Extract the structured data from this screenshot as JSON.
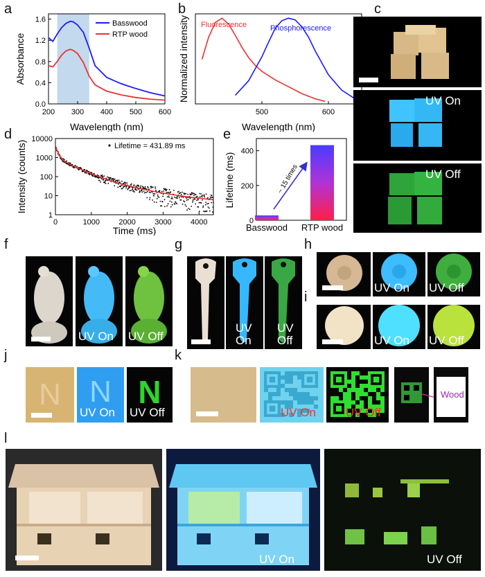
{
  "panel_labels": {
    "a": "a",
    "b": "b",
    "c": "c",
    "d": "d",
    "e": "e",
    "f": "f",
    "g": "g",
    "h": "h",
    "i": "i",
    "j": "j",
    "k": "k",
    "l": "l"
  },
  "captions": {
    "uv_on": "UV On",
    "uv_off": "UV Off",
    "uv": "UV",
    "on": "On",
    "off": "Off",
    "wood": "Wood"
  },
  "colors": {
    "blue": "#1a1aff",
    "red": "#e8332f",
    "uv_blue": "#2fb4ff",
    "green": "#34c23a"
  },
  "chart_data": [
    {
      "id": "a",
      "type": "line",
      "xlabel": "Wavelength (nm)",
      "ylabel": "Absorbance",
      "xlim": [
        200,
        600
      ],
      "ylim": [
        0,
        1.7
      ],
      "xticks": [
        200,
        300,
        400,
        500,
        600
      ],
      "yticks": [
        0.0,
        0.4,
        0.8,
        1.2,
        1.6
      ],
      "ytick_labels": [
        "0.0",
        "0.4",
        "0.8",
        "1.2",
        "1.6"
      ],
      "highlight": [
        230,
        340
      ],
      "series": [
        {
          "name": "Basswood",
          "color": "#1a1aff",
          "x": [
            200,
            215,
            230,
            245,
            260,
            275,
            285,
            300,
            320,
            340,
            360,
            400,
            450,
            500,
            550,
            600
          ],
          "y": [
            1.25,
            1.18,
            1.32,
            1.44,
            1.52,
            1.56,
            1.55,
            1.49,
            1.35,
            1.05,
            0.72,
            0.5,
            0.38,
            0.29,
            0.21,
            0.15
          ]
        },
        {
          "name": "RTP wood",
          "color": "#e8332f",
          "x": [
            200,
            215,
            230,
            245,
            260,
            275,
            285,
            300,
            320,
            340,
            360,
            400,
            450,
            500,
            550,
            600
          ],
          "y": [
            0.72,
            0.7,
            0.8,
            0.92,
            1.0,
            1.03,
            1.01,
            0.95,
            0.78,
            0.52,
            0.36,
            0.24,
            0.17,
            0.12,
            0.09,
            0.07
          ]
        }
      ]
    },
    {
      "id": "b",
      "type": "line",
      "xlabel": "Wavelength (nm)",
      "ylabel": "Normalized intensity",
      "xlim": [
        400,
        650
      ],
      "ylim": [
        0,
        1.05
      ],
      "xticks": [
        500,
        600
      ],
      "series": [
        {
          "name": "Fluorescence",
          "color": "#e8332f",
          "x": [
            410,
            420,
            430,
            440,
            450,
            460,
            470,
            480,
            490,
            500,
            520,
            540,
            560,
            580,
            595
          ],
          "y": [
            0.52,
            0.78,
            0.95,
            1.0,
            0.93,
            0.8,
            0.66,
            0.54,
            0.45,
            0.38,
            0.28,
            0.2,
            0.12,
            0.06,
            0.03
          ]
        },
        {
          "name": "Phosphorescence",
          "color": "#1a1aff",
          "x": [
            460,
            480,
            500,
            510,
            520,
            530,
            540,
            550,
            560,
            570,
            580,
            600,
            620,
            640,
            650
          ],
          "y": [
            0.1,
            0.27,
            0.55,
            0.72,
            0.88,
            0.97,
            1.0,
            0.98,
            0.9,
            0.78,
            0.62,
            0.34,
            0.16,
            0.06,
            0.03
          ]
        }
      ]
    },
    {
      "id": "d",
      "type": "scatter",
      "xlabel": "Time (ms)",
      "ylabel": "Intensity (counts)",
      "xlim": [
        0,
        4400
      ],
      "ylog": [
        1,
        10000
      ],
      "xticks": [
        0,
        1000,
        2000,
        3000,
        4000
      ],
      "yticks": [
        1,
        10,
        100,
        1000,
        10000
      ],
      "ytick_labels": [
        "1",
        "10",
        "100",
        "1000",
        "10000"
      ],
      "legend": "Lifetime = 431.89 ms",
      "fit_color": "#e8332f"
    },
    {
      "id": "e",
      "type": "bar",
      "ylabel": "Lifetime (ms)",
      "ylim": [
        0,
        470
      ],
      "yticks": [
        0,
        200,
        400
      ],
      "categories": [
        "Basswood",
        "RTP wood"
      ],
      "values": [
        28,
        432
      ],
      "annotation": "~ 15 times"
    }
  ]
}
